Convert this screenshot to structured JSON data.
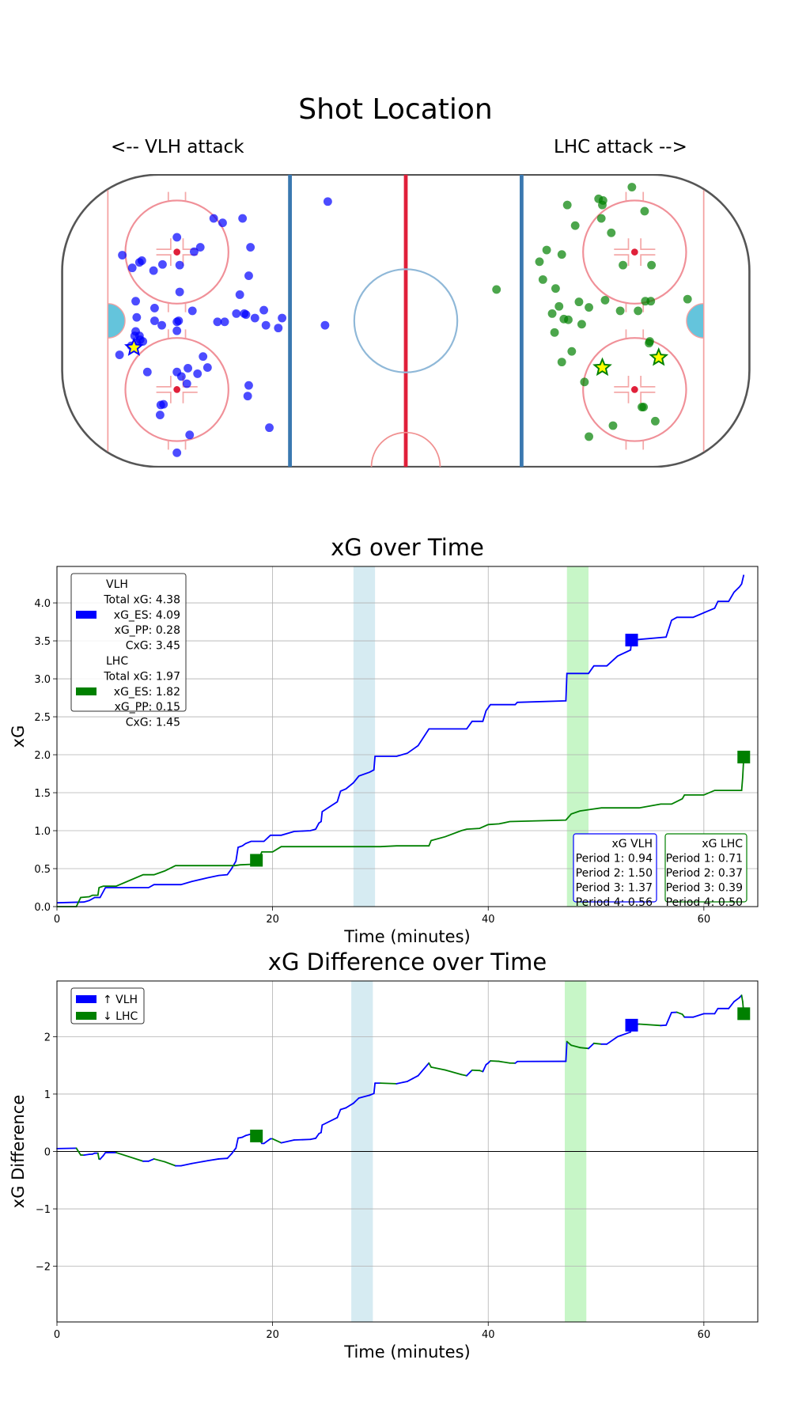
{
  "rink": {
    "title": "Shot Location",
    "left_label": "<-- VLH attack",
    "right_label": "LHC attack -->",
    "units": "feet",
    "vlh_color": "#0000ff",
    "lhc_color": "#008000",
    "goal_marker_fill": "#ffff00",
    "vlh_shots": [
      [
        -22.7,
        34.7
      ],
      [
        -55.9,
        29.8
      ],
      [
        -53.3,
        28.5
      ],
      [
        -47.5,
        29.8
      ],
      [
        -66.6,
        24.3
      ],
      [
        -59.8,
        21.4
      ],
      [
        -61.6,
        20.1
      ],
      [
        -82.5,
        19.1
      ],
      [
        -76.8,
        17.5
      ],
      [
        -77.5,
        17.0
      ],
      [
        -79.6,
        15.4
      ],
      [
        -73.4,
        14.6
      ],
      [
        -70.8,
        16.4
      ],
      [
        -65.8,
        16.2
      ],
      [
        -45.2,
        21.4
      ],
      [
        -45.7,
        13.1
      ],
      [
        -65.8,
        8.4
      ],
      [
        -78.6,
        5.7
      ],
      [
        -48.3,
        7.6
      ],
      [
        -73.1,
        3.7
      ],
      [
        -78.3,
        1.0
      ],
      [
        -73.1,
        0
      ],
      [
        -66.6,
        -0.3
      ],
      [
        -66.1,
        0
      ],
      [
        -62.1,
        2.9
      ],
      [
        -54.8,
        -0.3
      ],
      [
        -52.7,
        -0.3
      ],
      [
        -49.3,
        2.1
      ],
      [
        -47.0,
        2.1
      ],
      [
        -46.5,
        1.8
      ],
      [
        -43.9,
        0.8
      ],
      [
        -41.3,
        3.1
      ],
      [
        -40.7,
        -1.3
      ],
      [
        -37.1,
        -2.1
      ],
      [
        -36.0,
        0.8
      ],
      [
        -23.5,
        -1.3
      ],
      [
        -78.6,
        -3.1
      ],
      [
        -78.9,
        -4.4
      ],
      [
        -77.5,
        -4.4
      ],
      [
        -77.3,
        -5.5
      ],
      [
        -71.0,
        -1.3
      ],
      [
        -66.6,
        -2.9
      ],
      [
        -76.5,
        -6.0
      ],
      [
        -78.3,
        -6.5
      ],
      [
        -79.9,
        -7.3
      ],
      [
        -83.3,
        -9.9
      ],
      [
        -75.2,
        -14.9
      ],
      [
        -66.6,
        -14.9
      ],
      [
        -65.3,
        -16.2
      ],
      [
        -63.4,
        -13.8
      ],
      [
        -57.7,
        -13.6
      ],
      [
        -59.0,
        -10.4
      ],
      [
        -63.7,
        -18.3
      ],
      [
        -60.6,
        -15.4
      ],
      [
        -45.7,
        -18.8
      ],
      [
        -46.0,
        -21.9
      ],
      [
        -70.5,
        -24.3
      ],
      [
        -71.3,
        -24.5
      ],
      [
        -71.5,
        -27.4
      ],
      [
        -62.9,
        -33.2
      ],
      [
        -39.7,
        -31.1
      ],
      [
        -66.6,
        -38.4
      ]
    ],
    "vlh_goals": [
      [
        -79.1,
        -7.8
      ]
    ],
    "lhc_shots": [
      [
        65.8,
        38.9
      ],
      [
        56.1,
        35.5
      ],
      [
        57.4,
        35.0
      ],
      [
        57.2,
        33.7
      ],
      [
        47.0,
        33.7
      ],
      [
        69.5,
        31.9
      ],
      [
        56.9,
        29.8
      ],
      [
        49.3,
        27.7
      ],
      [
        59.8,
        25.6
      ],
      [
        41.0,
        20.6
      ],
      [
        45.4,
        19.3
      ],
      [
        38.9,
        17.2
      ],
      [
        63.2,
        16.2
      ],
      [
        71.5,
        16.2
      ],
      [
        39.9,
        12.0
      ],
      [
        43.6,
        9.4
      ],
      [
        26.4,
        9.1
      ],
      [
        58.0,
        6.0
      ],
      [
        50.4,
        5.5
      ],
      [
        44.6,
        4.2
      ],
      [
        53.3,
        3.9
      ],
      [
        62.4,
        2.9
      ],
      [
        67.6,
        2.9
      ],
      [
        69.7,
        5.7
      ],
      [
        71.3,
        5.7
      ],
      [
        82.0,
        6.3
      ],
      [
        42.6,
        2.1
      ],
      [
        46.0,
        0.5
      ],
      [
        47.3,
        0.3
      ],
      [
        51.2,
        -1.0
      ],
      [
        43.3,
        -3.4
      ],
      [
        48.3,
        -8.9
      ],
      [
        45.4,
        -12.0
      ],
      [
        70.8,
        -6.5
      ],
      [
        71.0,
        -6.0
      ],
      [
        52.0,
        -17.8
      ],
      [
        69.2,
        -25.1
      ],
      [
        68.7,
        -25.1
      ],
      [
        72.6,
        -29.2
      ],
      [
        60.3,
        -30.5
      ],
      [
        53.3,
        -33.7
      ]
    ],
    "lhc_goals": [
      [
        57.2,
        -13.6
      ],
      [
        73.6,
        -10.7
      ]
    ]
  },
  "chart_data": [
    {
      "type": "line",
      "title": "xG over Time",
      "xlabel": "Time (minutes)",
      "ylabel": "xG",
      "xlim": [
        0,
        65
      ],
      "ylim": [
        0,
        4.48
      ],
      "xticks": [
        0,
        20,
        40,
        60
      ],
      "yticks": [
        0.0,
        0.5,
        1.0,
        1.5,
        2.0,
        2.5,
        3.0,
        3.5,
        4.0
      ],
      "ytick_labels": [
        "0.0",
        "0.5",
        "1.0",
        "1.5",
        "2.0",
        "2.5",
        "3.0",
        "3.5",
        "4.0"
      ],
      "grid": true,
      "shaded_periods": [
        {
          "x": [
            27.5,
            29.5
          ],
          "color": "#add8e6"
        },
        {
          "x": [
            47.3,
            49.3
          ],
          "color": "#90ee90"
        }
      ],
      "series": [
        {
          "name": "VLH",
          "color": "#0000ff",
          "x": [
            0,
            2.5,
            3,
            3.5,
            4,
            4.5,
            8.5,
            9,
            11.5,
            12.5,
            14,
            15,
            15.8,
            16.2,
            16.6,
            16.8,
            17.2,
            17.5,
            18,
            19.2,
            19.8,
            20.8,
            22,
            23.5,
            24,
            24.3,
            24.5,
            24.6,
            26,
            26.3,
            26.8,
            27.5,
            28,
            29,
            29.4,
            29.5,
            31.5,
            32.5,
            33,
            33.5,
            34.5,
            38,
            38.5,
            39.5,
            39.8,
            40.2,
            42.5,
            42.7,
            47.2,
            47.3,
            49.3,
            49.8,
            51,
            52,
            53.2,
            53.3,
            56.5,
            57,
            57.5,
            59,
            61,
            61.3,
            62.3,
            62.8,
            63.3,
            63.5,
            63.7
          ],
          "y": [
            0.05,
            0.06,
            0.08,
            0.12,
            0.12,
            0.25,
            0.25,
            0.29,
            0.29,
            0.33,
            0.38,
            0.41,
            0.42,
            0.5,
            0.6,
            0.78,
            0.8,
            0.83,
            0.86,
            0.86,
            0.94,
            0.94,
            0.99,
            1.0,
            1.02,
            1.1,
            1.12,
            1.25,
            1.38,
            1.52,
            1.55,
            1.63,
            1.72,
            1.77,
            1.8,
            1.98,
            1.98,
            2.02,
            2.07,
            2.12,
            2.34,
            2.34,
            2.44,
            2.44,
            2.58,
            2.66,
            2.66,
            2.69,
            2.71,
            3.07,
            3.07,
            3.17,
            3.17,
            3.3,
            3.38,
            3.51,
            3.55,
            3.77,
            3.81,
            3.81,
            3.93,
            4.02,
            4.02,
            4.14,
            4.21,
            4.25,
            4.37
          ]
        },
        {
          "name": "LHC",
          "color": "#008000",
          "x": [
            0,
            1.8,
            2.2,
            3,
            3.3,
            3.8,
            3.9,
            4.3,
            5.5,
            8,
            9,
            10,
            11,
            16.5,
            17,
            18.5,
            19,
            20,
            20.8,
            30,
            31.5,
            34.5,
            34.7,
            36,
            37.5,
            38,
            39.2,
            40,
            41,
            42,
            47.2,
            47.7,
            48.5,
            49.5,
            50.5,
            54,
            56,
            57,
            58,
            58.2,
            60,
            61,
            63.5,
            63.6,
            63.7
          ],
          "y": [
            0,
            0,
            0.12,
            0.13,
            0.15,
            0.15,
            0.25,
            0.27,
            0.27,
            0.42,
            0.42,
            0.47,
            0.54,
            0.54,
            0.55,
            0.56,
            0.72,
            0.72,
            0.79,
            0.79,
            0.8,
            0.8,
            0.87,
            0.92,
            1.0,
            1.02,
            1.03,
            1.08,
            1.09,
            1.12,
            1.14,
            1.22,
            1.26,
            1.28,
            1.3,
            1.3,
            1.35,
            1.35,
            1.42,
            1.47,
            1.47,
            1.53,
            1.53,
            1.7,
            1.97
          ]
        }
      ],
      "markers": [
        {
          "team": "VLH",
          "x": 53.3,
          "y": 3.51,
          "color": "#0000ff"
        },
        {
          "team": "LHC",
          "x": 18.5,
          "y": 0.61,
          "color": "#008000"
        },
        {
          "team": "LHC",
          "x": 63.7,
          "y": 1.97,
          "color": "#008000"
        }
      ],
      "legend": {
        "placement": "top-left",
        "entries": [
          {
            "color": "#0000ff",
            "lines": [
              "VLH",
              "Total xG: 4.38",
              "xG_ES: 4.09",
              "xG_PP: 0.28",
              "CxG: 3.45"
            ]
          },
          {
            "color": "#008000",
            "lines": [
              "LHC",
              "Total xG: 1.97",
              "xG_ES: 1.82",
              "xG_PP: 0.15",
              "CxG: 1.45"
            ]
          }
        ]
      },
      "period_boxes": [
        {
          "color": "#0000ff",
          "lines": [
            "xG VLH",
            "Period 1: 0.94",
            "Period 2: 1.50",
            "Period 3: 1.37",
            "Period 4: 0.56"
          ]
        },
        {
          "color": "#008000",
          "lines": [
            "xG LHC",
            "Period 1: 0.71",
            "Period 2: 0.37",
            "Period 3: 0.39",
            "Period 4: 0.50"
          ]
        }
      ]
    },
    {
      "type": "line",
      "title": "xG Difference over Time",
      "xlabel": "Time (minutes)",
      "ylabel": "xG Difference",
      "xlim": [
        0,
        65
      ],
      "ylim": [
        -2.97,
        2.97
      ],
      "xticks": [
        0,
        20,
        40,
        60
      ],
      "yticks": [
        -2,
        -1,
        0,
        1,
        2
      ],
      "ytick_labels": [
        "−2",
        "−1",
        "0",
        "1",
        "2"
      ],
      "grid": true,
      "zero_line": true,
      "derived_from": "VLH minus LHC",
      "shaded_periods": [
        {
          "x": [
            27.3,
            29.3
          ],
          "color": "#add8e6"
        },
        {
          "x": [
            47.1,
            49.1
          ],
          "color": "#90ee90"
        }
      ],
      "markers": [
        {
          "team": "LHC",
          "x": 18.5,
          "y": 0.27,
          "color": "#008000"
        },
        {
          "team": "VLH",
          "x": 53.3,
          "y": 2.2,
          "color": "#0000ff"
        },
        {
          "team": "LHC",
          "x": 63.7,
          "y": 2.4,
          "color": "#008000"
        }
      ],
      "legend": {
        "placement": "top-left",
        "entries": [
          {
            "color": "#0000ff",
            "label": "↑ VLH"
          },
          {
            "color": "#008000",
            "label": "↓ LHC"
          }
        ]
      }
    }
  ]
}
